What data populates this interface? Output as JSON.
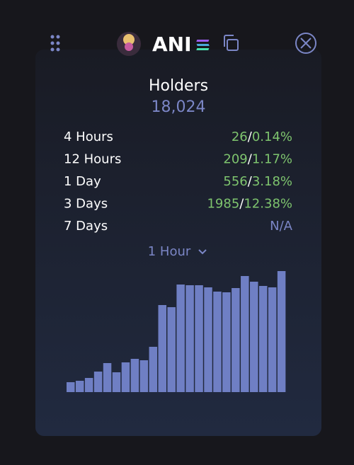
{
  "header": {
    "title": "ANI"
  },
  "holders": {
    "label": "Holders",
    "value": "18,024"
  },
  "separator": "/",
  "rows": [
    {
      "label": "4 Hours",
      "count": "26",
      "pct": "0.14%"
    },
    {
      "label": "12 Hours",
      "count": "209",
      "pct": "1.17%"
    },
    {
      "label": "1 Day",
      "count": "556",
      "pct": "3.18%"
    },
    {
      "label": "3 Days",
      "count": "1985",
      "pct": "12.38%"
    },
    {
      "label": "7 Days",
      "na": "N/A"
    }
  ],
  "interval": "1 Hour",
  "chart_data": {
    "type": "bar",
    "color": "#6f7fc4",
    "values": [
      14,
      16,
      20,
      29,
      41,
      28,
      42,
      47,
      45,
      64,
      123,
      120,
      152,
      151,
      151,
      148,
      142,
      141,
      147,
      164,
      156,
      150,
      148,
      171
    ]
  }
}
